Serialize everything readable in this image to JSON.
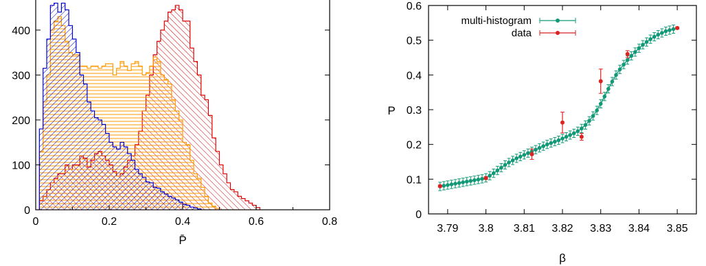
{
  "chart_data": [
    {
      "type": "histogram",
      "xlabel": "P̄",
      "ylabel": "",
      "xlim": [
        0,
        0.8
      ],
      "ylim": [
        0,
        470
      ],
      "xticks": [
        "0",
        "0.2",
        "0.4",
        "0.6",
        "0.8"
      ],
      "yticks": [
        "0",
        "100",
        "200",
        "300",
        "400"
      ],
      "bin_width": 0.01,
      "series": [
        {
          "color": "#0000cc",
          "hatch": "diagonal-down",
          "x_start": 0.01,
          "values": [
            180,
            315,
            380,
            455,
            460,
            440,
            460,
            445,
            410,
            380,
            350,
            300,
            280,
            240,
            220,
            205,
            200,
            190,
            170,
            150,
            140,
            135,
            150,
            140,
            125,
            110,
            90,
            80,
            72,
            62,
            60,
            50,
            48,
            40,
            35,
            30,
            26,
            22,
            17,
            12,
            10,
            6,
            4,
            2
          ]
        },
        {
          "color": "#ff9900",
          "hatch": "horizontal",
          "x_start": 0.01,
          "values": [
            130,
            240,
            300,
            400,
            420,
            430,
            410,
            375,
            350,
            345,
            345,
            320,
            320,
            315,
            320,
            320,
            315,
            320,
            325,
            325,
            300,
            315,
            330,
            320,
            310,
            325,
            330,
            320,
            300,
            305,
            320,
            340,
            330,
            300,
            290,
            280,
            245,
            220,
            200,
            150,
            145,
            110,
            80,
            70,
            50,
            30,
            15,
            8,
            3
          ]
        },
        {
          "color": "#dd0000",
          "hatch": "diagonal-up",
          "x_start": 0.01,
          "values": [
            20,
            30,
            45,
            60,
            70,
            80,
            80,
            100,
            90,
            100,
            100,
            120,
            115,
            95,
            110,
            125,
            130,
            120,
            110,
            100,
            85,
            75,
            80,
            95,
            110,
            120,
            145,
            175,
            220,
            255,
            300,
            345,
            375,
            400,
            420,
            440,
            445,
            455,
            445,
            420,
            420,
            360,
            330,
            300,
            255,
            245,
            210,
            160,
            130,
            100,
            80,
            60,
            45,
            40,
            30,
            25,
            20,
            15,
            10,
            5
          ]
        }
      ]
    },
    {
      "type": "scatter",
      "xlabel": "β",
      "ylabel": "P",
      "xlim": [
        3.785,
        3.855
      ],
      "ylim": [
        0,
        0.6
      ],
      "xticks": [
        "3.79",
        "3.8",
        "3.81",
        "3.82",
        "3.83",
        "3.84",
        "3.85"
      ],
      "yticks": [
        "0",
        "0.1",
        "0.2",
        "0.3",
        "0.4",
        "0.5",
        "0.6"
      ],
      "legend_position": "top-left",
      "series": [
        {
          "name": "multi-histogram",
          "color": "#119977",
          "x": [
            3.788,
            3.789,
            3.79,
            3.791,
            3.792,
            3.793,
            3.794,
            3.795,
            3.796,
            3.797,
            3.798,
            3.799,
            3.8,
            3.801,
            3.802,
            3.803,
            3.804,
            3.805,
            3.806,
            3.807,
            3.808,
            3.809,
            3.81,
            3.811,
            3.812,
            3.813,
            3.814,
            3.815,
            3.816,
            3.817,
            3.818,
            3.819,
            3.82,
            3.821,
            3.822,
            3.823,
            3.824,
            3.825,
            3.826,
            3.827,
            3.828,
            3.829,
            3.83,
            3.831,
            3.832,
            3.833,
            3.834,
            3.835,
            3.836,
            3.837,
            3.838,
            3.839,
            3.84,
            3.841,
            3.842,
            3.843,
            3.844,
            3.845,
            3.846,
            3.847,
            3.848,
            3.849
          ],
          "y": [
            0.079,
            0.081,
            0.083,
            0.085,
            0.087,
            0.089,
            0.091,
            0.093,
            0.095,
            0.097,
            0.099,
            0.101,
            0.104,
            0.11,
            0.117,
            0.125,
            0.133,
            0.141,
            0.148,
            0.154,
            0.16,
            0.165,
            0.17,
            0.175,
            0.18,
            0.185,
            0.19,
            0.195,
            0.2,
            0.204,
            0.208,
            0.212,
            0.217,
            0.222,
            0.227,
            0.232,
            0.238,
            0.246,
            0.256,
            0.268,
            0.282,
            0.298,
            0.317,
            0.338,
            0.36,
            0.381,
            0.4,
            0.416,
            0.43,
            0.443,
            0.455,
            0.466,
            0.477,
            0.487,
            0.495,
            0.503,
            0.51,
            0.516,
            0.521,
            0.526,
            0.529,
            0.532
          ],
          "yerr": 0.012
        },
        {
          "name": "data",
          "color": "#dd2222",
          "x": [
            3.788,
            3.8,
            3.812,
            3.82,
            3.825,
            3.83,
            3.837,
            3.85
          ],
          "y": [
            0.08,
            0.103,
            0.172,
            0.263,
            0.222,
            0.382,
            0.46,
            0.535
          ],
          "yerr": [
            0.003,
            0.004,
            0.015,
            0.03,
            0.01,
            0.035,
            0.01,
            0.003
          ]
        }
      ]
    }
  ]
}
